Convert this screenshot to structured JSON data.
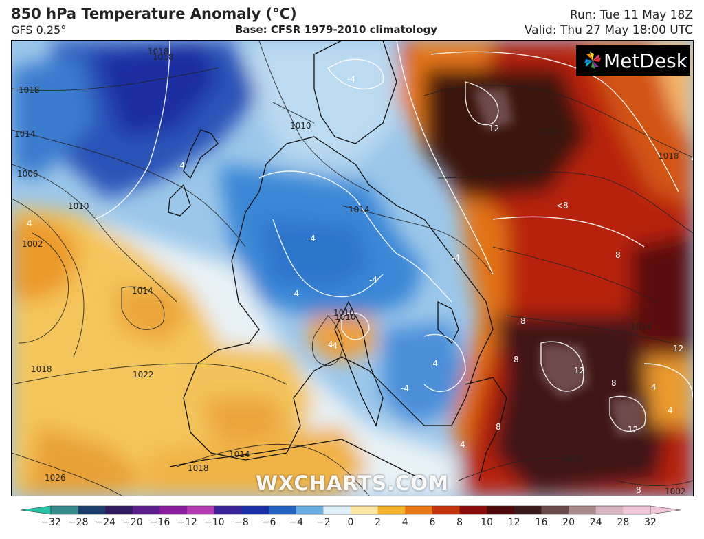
{
  "header": {
    "title": "850 hPa Temperature Anomaly (°C)",
    "model": "GFS 0.25°",
    "base": "Base: CFSR 1979-2010 climatology",
    "run": "Run: Tue 11 May 18Z",
    "valid": "Valid: Thu 27 May 18:00 UTC"
  },
  "logo": {
    "text": "MetDesk",
    "icon": "metdesk-pinwheel-icon"
  },
  "watermark": "WXCHARTS.COM",
  "colorbar": {
    "ticks": [
      "−32",
      "−28",
      "−24",
      "−20",
      "−16",
      "−12",
      "−10",
      "−8",
      "−6",
      "−4",
      "−2",
      "0",
      "2",
      "4",
      "6",
      "8",
      "10",
      "12",
      "16",
      "20",
      "24",
      "28",
      "32"
    ],
    "colors": [
      "#26c4a6",
      "#3a8b8b",
      "#1a3d6b",
      "#321a5e",
      "#5a1d8a",
      "#8a1d9c",
      "#b53bb3",
      "#3a2299",
      "#1b2fa6",
      "#2463c2",
      "#6aaee0",
      "#dff0fb",
      "#fbe6a6",
      "#f3b42b",
      "#e97713",
      "#c5330e",
      "#8c0b0b",
      "#4e0a0a",
      "#3a1a1a",
      "#6b4a4a",
      "#a88a8a",
      "#d8b5c0",
      "#f1c6d8"
    ],
    "accent_colors": {
      "cold": "#2463c2",
      "warm": "#8c0b0b"
    }
  },
  "map": {
    "contour_labels": [
      {
        "text": "1018"
      },
      {
        "text": "1018"
      },
      {
        "text": "1014"
      },
      {
        "text": "1006"
      },
      {
        "text": "1010"
      },
      {
        "text": "1002"
      },
      {
        "text": "1014"
      },
      {
        "text": "1022"
      },
      {
        "text": "1018"
      },
      {
        "text": "1018"
      },
      {
        "text": "1026"
      },
      {
        "text": "1010"
      },
      {
        "text": "1014"
      },
      {
        "text": "1010"
      },
      {
        "text": "1010"
      },
      {
        "text": "1018"
      },
      {
        "text": "1014"
      },
      {
        "text": "1014"
      },
      {
        "text": "1002"
      },
      {
        "text": "1018"
      },
      {
        "text": "1010"
      },
      {
        "text": "1010"
      }
    ],
    "anomaly_labels": [
      {
        "text": "-4"
      },
      {
        "text": "-4"
      },
      {
        "text": "-4"
      },
      {
        "text": "-4"
      },
      {
        "text": "-4"
      },
      {
        "text": "-4"
      },
      {
        "text": "-4"
      },
      {
        "text": "-4"
      },
      {
        "text": "-4"
      },
      {
        "text": "-4"
      },
      {
        "text": "4"
      },
      {
        "text": "4"
      },
      {
        "text": "4"
      },
      {
        "text": "4"
      },
      {
        "text": "4"
      },
      {
        "text": "8"
      },
      {
        "text": "8"
      },
      {
        "text": "8"
      },
      {
        "text": "8"
      },
      {
        "text": "8"
      },
      {
        "text": "8"
      },
      {
        "text": "12"
      },
      {
        "text": "12"
      },
      {
        "text": "12"
      },
      {
        "text": "12"
      },
      {
        "text": "<8"
      }
    ]
  }
}
